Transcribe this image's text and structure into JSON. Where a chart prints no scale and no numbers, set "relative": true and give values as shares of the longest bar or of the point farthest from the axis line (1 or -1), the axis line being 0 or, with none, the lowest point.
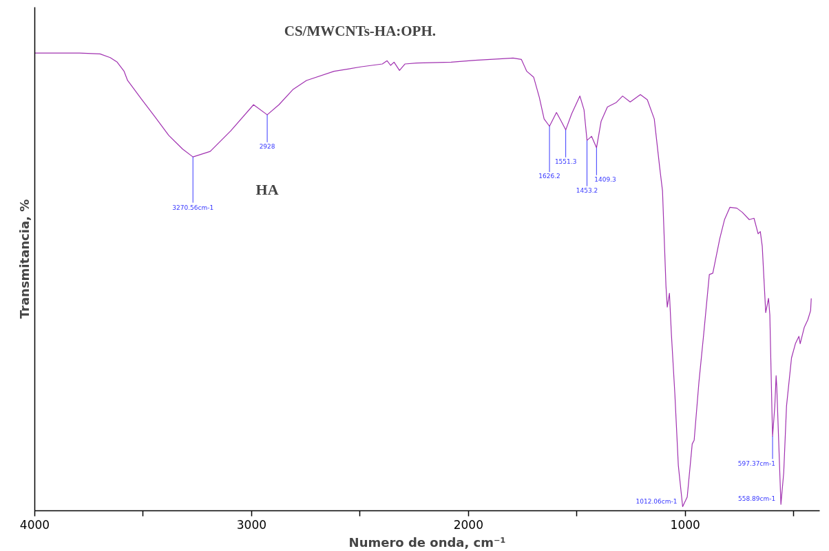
{
  "chart_data": {
    "type": "line",
    "title": "CS/MWCNTs-HA:OPH.",
    "xlabel": "Numero de onda, cm⁻¹",
    "ylabel": "Transmitancia, %",
    "relative": true,
    "grid": false,
    "marker": "none",
    "line_style": "solid",
    "xlim": [
      4000,
      380
    ],
    "xticks": [
      4000,
      {
        "value": 3500,
        "label": null
      },
      3000,
      {
        "value": 2500,
        "label": null
      },
      2000,
      {
        "value": 1500,
        "label": null
      },
      1000,
      {
        "value": 500,
        "label": null
      }
    ],
    "series": [
      {
        "color": "#a030b0",
        "x": [
          4000,
          3794,
          3699,
          3652,
          3620,
          3588,
          3572,
          3556,
          3509,
          3445,
          3382,
          3318,
          3270.56,
          3191,
          3096,
          2991,
          2928,
          2874,
          2810,
          2747,
          2620,
          2493,
          2397,
          2375,
          2359,
          2343,
          2318,
          2293,
          2239,
          2080,
          1969,
          1858,
          1794,
          1756,
          1731,
          1699,
          1673,
          1651,
          1626.2,
          1594,
          1572,
          1551.3,
          1524,
          1486,
          1467,
          1453.2,
          1432,
          1409.3,
          1388,
          1359,
          1318,
          1289,
          1254,
          1207,
          1175,
          1143,
          1118,
          1105,
          1089,
          1083,
          1073,
          1064,
          1048,
          1032,
          1012.06,
          991,
          968,
          959,
          937,
          915,
          889,
          873,
          841,
          819,
          794,
          762,
          737,
          705,
          683,
          664,
          654,
          645,
          629,
          616,
          610,
          600,
          597.37,
          587,
          581,
          578,
          558.89,
          546,
          533,
          510,
          492,
          476,
          470,
          451,
          435,
          422,
          419
        ],
        "values": [
          1.0,
          1.0,
          0.998,
          0.99,
          0.98,
          0.96,
          0.94,
          0.93,
          0.9,
          0.86,
          0.82,
          0.79,
          0.773,
          0.785,
          0.83,
          0.887,
          0.865,
          0.887,
          0.92,
          0.94,
          0.96,
          0.97,
          0.976,
          0.983,
          0.973,
          0.98,
          0.962,
          0.976,
          0.978,
          0.98,
          0.984,
          0.987,
          0.989,
          0.986,
          0.96,
          0.947,
          0.903,
          0.856,
          0.84,
          0.87,
          0.851,
          0.832,
          0.867,
          0.906,
          0.876,
          0.809,
          0.818,
          0.793,
          0.851,
          0.882,
          0.892,
          0.906,
          0.893,
          0.909,
          0.898,
          0.856,
          0.75,
          0.699,
          0.491,
          0.445,
          0.475,
          0.386,
          0.255,
          0.099,
          0.009,
          0.03,
          0.146,
          0.154,
          0.281,
          0.386,
          0.516,
          0.519,
          0.594,
          0.636,
          0.663,
          0.661,
          0.652,
          0.636,
          0.639,
          0.605,
          0.61,
          0.578,
          0.433,
          0.464,
          0.428,
          0.213,
          0.163,
          0.229,
          0.295,
          0.271,
          0.014,
          0.083,
          0.229,
          0.334,
          0.365,
          0.381,
          0.365,
          0.401,
          0.417,
          0.437,
          0.464
        ]
      }
    ],
    "annotations": [
      {
        "text": "3270.56cm-1",
        "x": 3270.56,
        "y": 0.773
      },
      {
        "text": "2928",
        "x": 2928,
        "y": 0.865
      },
      {
        "text": "1626.2",
        "x": 1626.2,
        "y": 0.84
      },
      {
        "text": "1551.3",
        "x": 1551.3,
        "y": 0.832
      },
      {
        "text": "1453.2",
        "x": 1453.2,
        "y": 0.809
      },
      {
        "text": "1409.3",
        "x": 1409.3,
        "y": 0.793
      },
      {
        "text": "1012.06cm-1",
        "x": 1012.06,
        "y": 0.009
      },
      {
        "text": "597.37cm-1",
        "x": 597.37,
        "y": 0.163
      },
      {
        "text": "558.89cm-1",
        "x": 558.89,
        "y": 0.014
      },
      "HA"
    ]
  }
}
